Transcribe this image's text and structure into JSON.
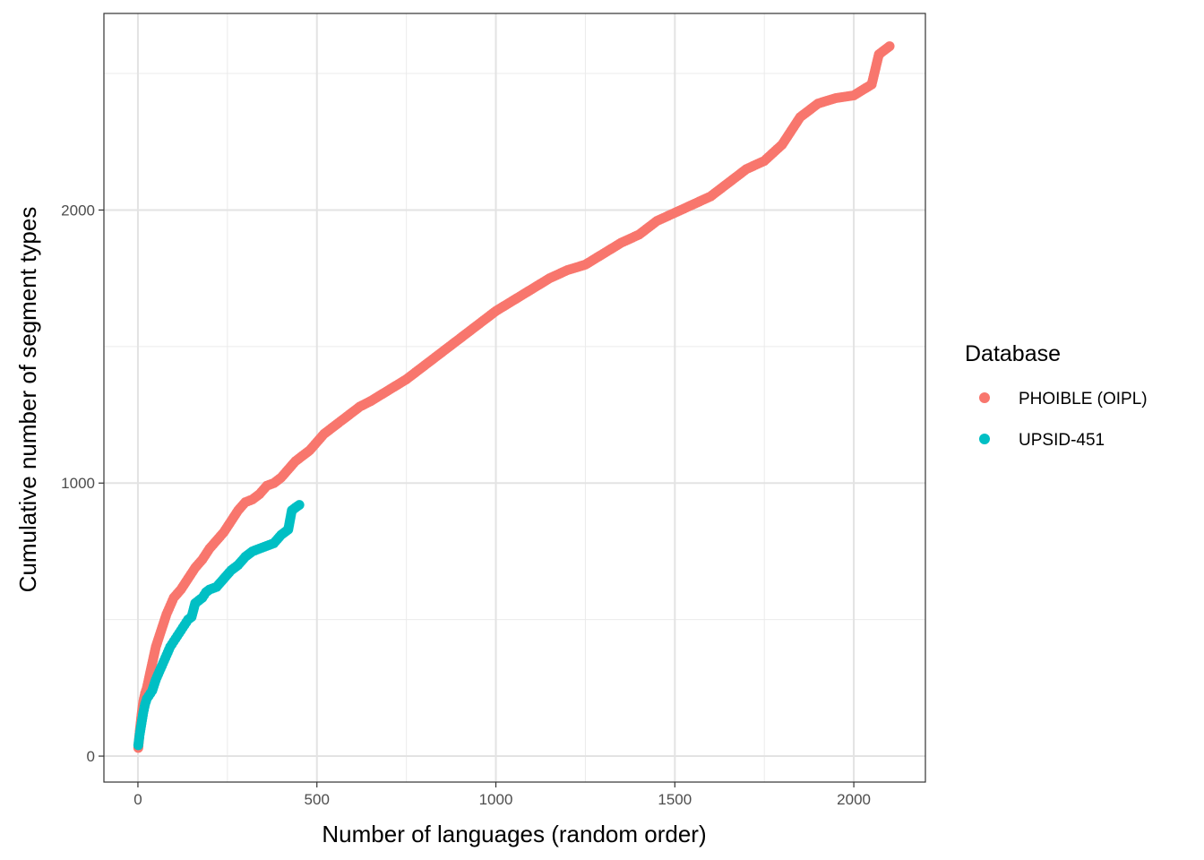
{
  "chart_data": {
    "type": "scatter",
    "xlabel": "Number of languages (random order)",
    "ylabel": "Cumulative number of segment types",
    "xlim": [
      -95,
      2200
    ],
    "ylim": [
      -95,
      2720
    ],
    "x_ticks": [
      0,
      500,
      1000,
      1500,
      2000
    ],
    "x_tick_labels": [
      "0",
      "500",
      "1000",
      "1500",
      "2000"
    ],
    "y_ticks": [
      0,
      1000,
      2000
    ],
    "y_tick_labels": [
      "0",
      "1000",
      "2000"
    ],
    "grid": true,
    "legend": {
      "title": "Database",
      "position": "right",
      "entries": [
        {
          "label": "PHOIBLE (OIPL)",
          "color": "#F8766D"
        },
        {
          "label": "UPSID-451",
          "color": "#00BFC4"
        }
      ]
    },
    "series": [
      {
        "name": "PHOIBLE (OIPL)",
        "color": "#F8766D",
        "x": [
          1,
          5,
          10,
          15,
          20,
          25,
          30,
          40,
          50,
          60,
          70,
          80,
          90,
          100,
          120,
          140,
          160,
          180,
          200,
          220,
          240,
          260,
          280,
          300,
          320,
          340,
          360,
          380,
          400,
          420,
          440,
          460,
          480,
          500,
          520,
          540,
          560,
          580,
          600,
          620,
          650,
          700,
          750,
          800,
          850,
          900,
          950,
          1000,
          1050,
          1100,
          1150,
          1200,
          1250,
          1300,
          1350,
          1400,
          1450,
          1500,
          1550,
          1600,
          1650,
          1700,
          1750,
          1800,
          1850,
          1900,
          1950,
          2000,
          2050,
          2070,
          2090,
          2100
        ],
        "y": [
          30,
          90,
          150,
          200,
          230,
          250,
          280,
          340,
          400,
          440,
          480,
          520,
          550,
          580,
          610,
          650,
          690,
          720,
          760,
          790,
          820,
          860,
          900,
          930,
          940,
          960,
          990,
          1000,
          1020,
          1050,
          1080,
          1100,
          1120,
          1150,
          1180,
          1200,
          1220,
          1240,
          1260,
          1280,
          1300,
          1340,
          1380,
          1430,
          1480,
          1530,
          1580,
          1630,
          1670,
          1710,
          1750,
          1780,
          1800,
          1840,
          1880,
          1910,
          1960,
          1990,
          2020,
          2050,
          2100,
          2150,
          2180,
          2240,
          2340,
          2390,
          2410,
          2420,
          2460,
          2570,
          2590,
          2600
        ]
      },
      {
        "name": "UPSID-451",
        "color": "#00BFC4",
        "x": [
          1,
          5,
          10,
          15,
          20,
          25,
          30,
          40,
          50,
          60,
          70,
          80,
          90,
          100,
          110,
          120,
          130,
          140,
          150,
          160,
          170,
          180,
          190,
          200,
          220,
          240,
          260,
          280,
          300,
          320,
          340,
          360,
          380,
          400,
          420,
          430,
          440,
          451
        ],
        "y": [
          40,
          80,
          120,
          160,
          190,
          210,
          220,
          240,
          280,
          310,
          340,
          370,
          400,
          420,
          440,
          460,
          480,
          500,
          510,
          560,
          570,
          580,
          600,
          610,
          620,
          650,
          680,
          700,
          730,
          750,
          760,
          770,
          780,
          810,
          830,
          900,
          910,
          920
        ]
      }
    ]
  }
}
